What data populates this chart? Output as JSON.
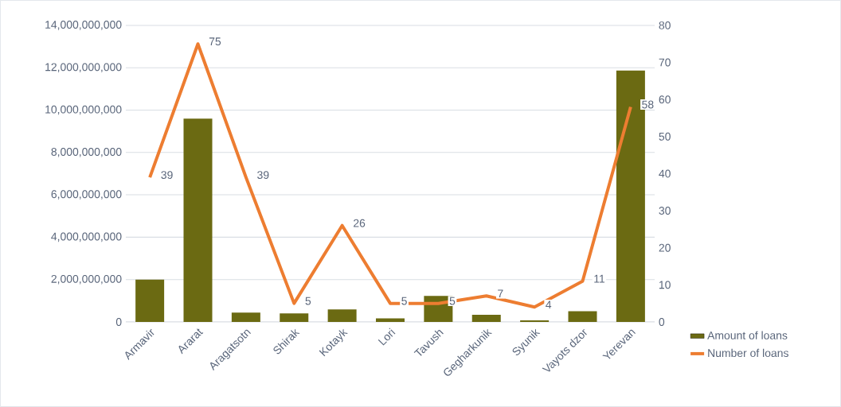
{
  "chart_data": {
    "type": "bar",
    "categories": [
      "Armavir",
      "Ararat",
      "Aragatsotn",
      "Shirak",
      "Kotayk",
      "Lori",
      "Tavush",
      "Gegharkunik",
      "Syunik",
      "Vayots dzor",
      "Yerevan"
    ],
    "series": [
      {
        "name": "Amount of loans",
        "axis": "y",
        "color": "#6b6a12",
        "values": [
          2000000000,
          9600000000,
          440000000,
          400000000,
          590000000,
          170000000,
          1230000000,
          340000000,
          70000000,
          510000000,
          11870000000
        ]
      },
      {
        "name": "Number of loans",
        "type": "line",
        "axis": "y2",
        "color": "#ed7d31",
        "values": [
          39,
          75,
          39,
          5,
          26,
          5,
          5,
          7,
          4,
          11,
          58
        ],
        "value_labels": [
          "39",
          "75",
          "39",
          "5",
          "26",
          "5",
          "5",
          "7",
          "4",
          "11",
          "58"
        ]
      }
    ],
    "ylim": [
      0,
      14000000000
    ],
    "yticks": [
      {
        "value": 0,
        "label": "0"
      },
      {
        "value": 2000000000,
        "label": "2,000,000,000"
      },
      {
        "value": 4000000000,
        "label": "4,000,000,000"
      },
      {
        "value": 6000000000,
        "label": "6,000,000,000"
      },
      {
        "value": 8000000000,
        "label": "8,000,000,000"
      },
      {
        "value": 10000000000,
        "label": "10,000,000,000"
      },
      {
        "value": 12000000000,
        "label": "12,000,000,000"
      },
      {
        "value": 14000000000,
        "label": "14,000,000,000"
      }
    ],
    "y2lim": [
      0,
      80
    ],
    "y2ticks": [
      0,
      10,
      20,
      30,
      40,
      50,
      60,
      70,
      80
    ],
    "grid": "y",
    "legend": "bottom right"
  }
}
